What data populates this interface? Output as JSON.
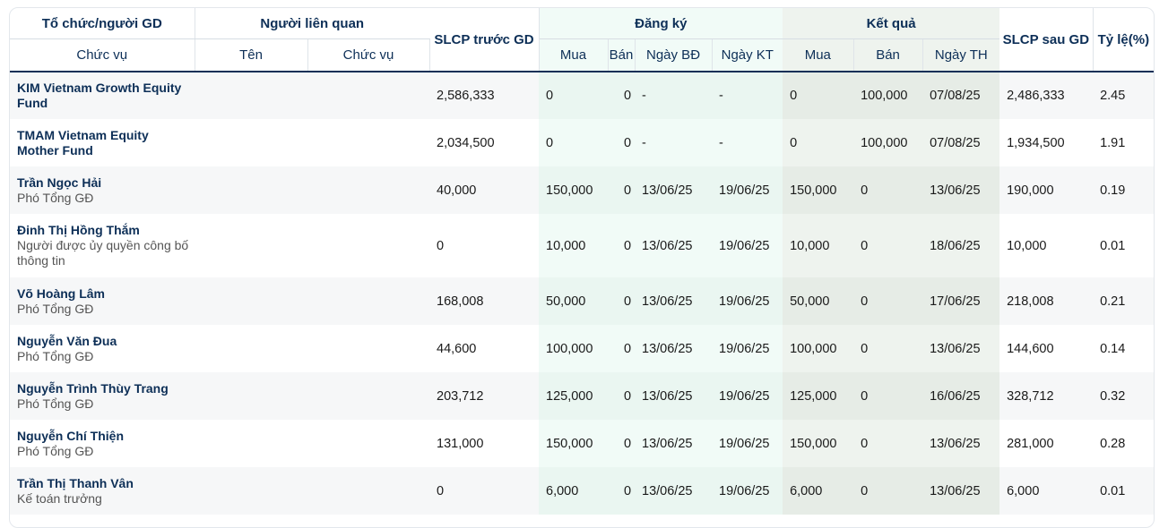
{
  "headers": {
    "org": "Tổ chức/người GD",
    "position": "Chức vụ",
    "related": "Người liên quan",
    "related_name": "Tên",
    "related_position": "Chức vụ",
    "before": "SLCP trước GD",
    "register": "Đăng ký",
    "result": "Kết quả",
    "buy": "Mua",
    "sell": "Bán",
    "start": "Ngày BĐ",
    "end": "Ngày KT",
    "buy2": "Mua",
    "sell2": "Bán",
    "exec": "Ngày TH",
    "after": "SLCP sau GD",
    "ratio": "Tỷ lệ(%)"
  },
  "rows": [
    {
      "name": "KIM Vietnam Growth Equity Fund",
      "role": "",
      "before": "2,586,333",
      "reg_buy": "0",
      "reg_sell": "0",
      "start": "-",
      "end": "-",
      "res_buy": "0",
      "res_sell": "100,000",
      "exec": "07/08/25",
      "after": "2,486,333",
      "ratio": "2.45"
    },
    {
      "name": "TMAM Vietnam Equity Mother Fund",
      "role": "",
      "before": "2,034,500",
      "reg_buy": "0",
      "reg_sell": "0",
      "start": "-",
      "end": "-",
      "res_buy": "0",
      "res_sell": "100,000",
      "exec": "07/08/25",
      "after": "1,934,500",
      "ratio": "1.91"
    },
    {
      "name": "Trần Ngọc Hải",
      "role": "Phó Tổng GĐ",
      "before": "40,000",
      "reg_buy": "150,000",
      "reg_sell": "0",
      "start": "13/06/25",
      "end": "19/06/25",
      "res_buy": "150,000",
      "res_sell": "0",
      "exec": "13/06/25",
      "after": "190,000",
      "ratio": "0.19"
    },
    {
      "name": "Đinh Thị Hồng Thắm",
      "role": "Người được ủy quyền công bố thông tin",
      "before": "0",
      "reg_buy": "10,000",
      "reg_sell": "0",
      "start": "13/06/25",
      "end": "19/06/25",
      "res_buy": "10,000",
      "res_sell": "0",
      "exec": "18/06/25",
      "after": "10,000",
      "ratio": "0.01"
    },
    {
      "name": "Võ Hoàng Lâm",
      "role": "Phó Tổng GĐ",
      "before": "168,008",
      "reg_buy": "50,000",
      "reg_sell": "0",
      "start": "13/06/25",
      "end": "19/06/25",
      "res_buy": "50,000",
      "res_sell": "0",
      "exec": "17/06/25",
      "after": "218,008",
      "ratio": "0.21"
    },
    {
      "name": "Nguyễn Văn Đua",
      "role": "Phó Tổng GĐ",
      "before": "44,600",
      "reg_buy": "100,000",
      "reg_sell": "0",
      "start": "13/06/25",
      "end": "19/06/25",
      "res_buy": "100,000",
      "res_sell": "0",
      "exec": "13/06/25",
      "after": "144,600",
      "ratio": "0.14"
    },
    {
      "name": "Nguyễn Trình Thùy Trang",
      "role": "Phó Tổng GĐ",
      "before": "203,712",
      "reg_buy": "125,000",
      "reg_sell": "0",
      "start": "13/06/25",
      "end": "19/06/25",
      "res_buy": "125,000",
      "res_sell": "0",
      "exec": "16/06/25",
      "after": "328,712",
      "ratio": "0.32"
    },
    {
      "name": "Nguyễn Chí Thiện",
      "role": "Phó Tổng GĐ",
      "before": "131,000",
      "reg_buy": "150,000",
      "reg_sell": "0",
      "start": "13/06/25",
      "end": "19/06/25",
      "res_buy": "150,000",
      "res_sell": "0",
      "exec": "13/06/25",
      "after": "281,000",
      "ratio": "0.28"
    },
    {
      "name": "Trần Thị Thanh Vân",
      "role": "Kế toán trưởng",
      "before": "0",
      "reg_buy": "6,000",
      "reg_sell": "0",
      "start": "13/06/25",
      "end": "19/06/25",
      "res_buy": "6,000",
      "res_sell": "0",
      "exec": "13/06/25",
      "after": "6,000",
      "ratio": "0.01"
    }
  ]
}
